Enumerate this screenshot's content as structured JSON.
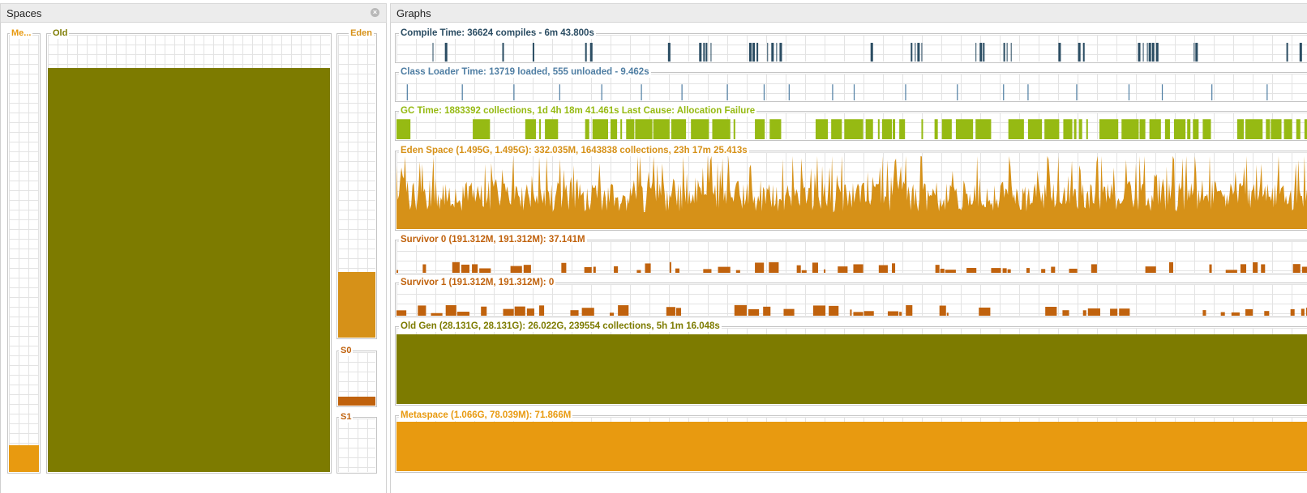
{
  "colors": {
    "olive": "#7d7b00",
    "orange": "#e89a10",
    "amber": "#d69118",
    "rust": "#c0620d",
    "compile": "#2b4d63",
    "classloader": "#4f7ea3",
    "gc": "#96ba13"
  },
  "spaces": {
    "title": "Spaces",
    "close_icon": "close-icon",
    "metaspace": {
      "label": "Me...",
      "fill": 0.065
    },
    "old": {
      "label": "Old",
      "fill": 0.925
    },
    "eden": {
      "label": "Eden",
      "fill": 0.222
    },
    "s0": {
      "label": "S0",
      "fill": 0.194
    },
    "s1": {
      "label": "S1",
      "fill": 0.0
    }
  },
  "graphs": {
    "title": "Graphs",
    "compile": {
      "label": "Compile Time: 36624 compiles - 6m 43.800s"
    },
    "classloader": {
      "label": "Class Loader Time: 13719 loaded, 555 unloaded - 9.462s"
    },
    "gc": {
      "label": "GC Time: 1883392 collections, 1d 4h 18m 41.461s  Last Cause: Allocation Failure"
    },
    "eden": {
      "label": "Eden Space (1.495G, 1.495G): 332.035M, 1643838 collections, 23h 17m 25.413s"
    },
    "survivor0": {
      "label": "Survivor 0 (191.312M, 191.312M): 37.141M"
    },
    "survivor1": {
      "label": "Survivor 1 (191.312M, 191.312M): 0"
    },
    "oldgen": {
      "label": "Old Gen (28.131G, 28.131G): 26.022G, 239554 collections, 5h 1m 16.048s",
      "fill": 0.92
    },
    "metaspace": {
      "label": "Metaspace (1.066G, 78.039M): 71.866M",
      "fill": 0.92
    }
  }
}
